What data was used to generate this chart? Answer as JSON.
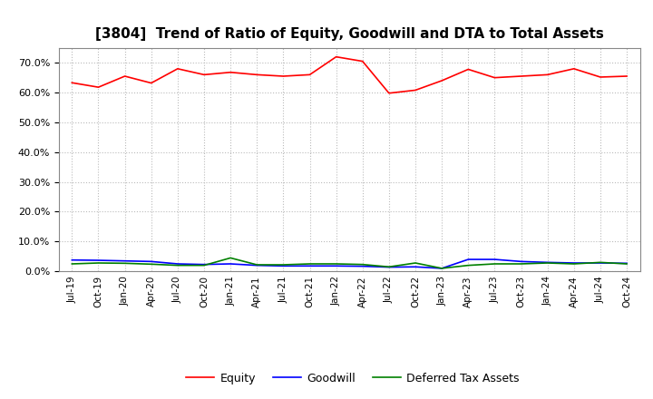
{
  "title": "[3804]  Trend of Ratio of Equity, Goodwill and DTA to Total Assets",
  "x_labels": [
    "Jul-19",
    "Oct-19",
    "Jan-20",
    "Apr-20",
    "Jul-20",
    "Oct-20",
    "Jan-21",
    "Apr-21",
    "Jul-21",
    "Oct-21",
    "Jan-22",
    "Apr-22",
    "Jul-22",
    "Oct-22",
    "Jan-23",
    "Apr-23",
    "Jul-23",
    "Oct-23",
    "Jan-24",
    "Apr-24",
    "Jul-24",
    "Oct-24"
  ],
  "equity": [
    0.633,
    0.618,
    0.655,
    0.632,
    0.68,
    0.66,
    0.668,
    0.66,
    0.655,
    0.66,
    0.72,
    0.705,
    0.598,
    0.608,
    0.64,
    0.678,
    0.65,
    0.655,
    0.66,
    0.68,
    0.652,
    0.655
  ],
  "goodwill": [
    0.038,
    0.037,
    0.035,
    0.033,
    0.025,
    0.023,
    0.025,
    0.02,
    0.018,
    0.018,
    0.018,
    0.017,
    0.014,
    0.015,
    0.01,
    0.04,
    0.04,
    0.033,
    0.03,
    0.028,
    0.028,
    0.027
  ],
  "dta": [
    0.025,
    0.028,
    0.027,
    0.024,
    0.02,
    0.02,
    0.045,
    0.022,
    0.022,
    0.025,
    0.025,
    0.023,
    0.015,
    0.028,
    0.01,
    0.02,
    0.025,
    0.025,
    0.028,
    0.025,
    0.03,
    0.025
  ],
  "equity_color": "#ff0000",
  "goodwill_color": "#0000ff",
  "dta_color": "#008000",
  "ylim": [
    0.0,
    0.75
  ],
  "yticks": [
    0.0,
    0.1,
    0.2,
    0.3,
    0.4,
    0.5,
    0.6,
    0.7
  ],
  "background_color": "#ffffff",
  "grid_color": "#bbbbbb",
  "title_fontsize": 11,
  "legend_labels": [
    "Equity",
    "Goodwill",
    "Deferred Tax Assets"
  ]
}
